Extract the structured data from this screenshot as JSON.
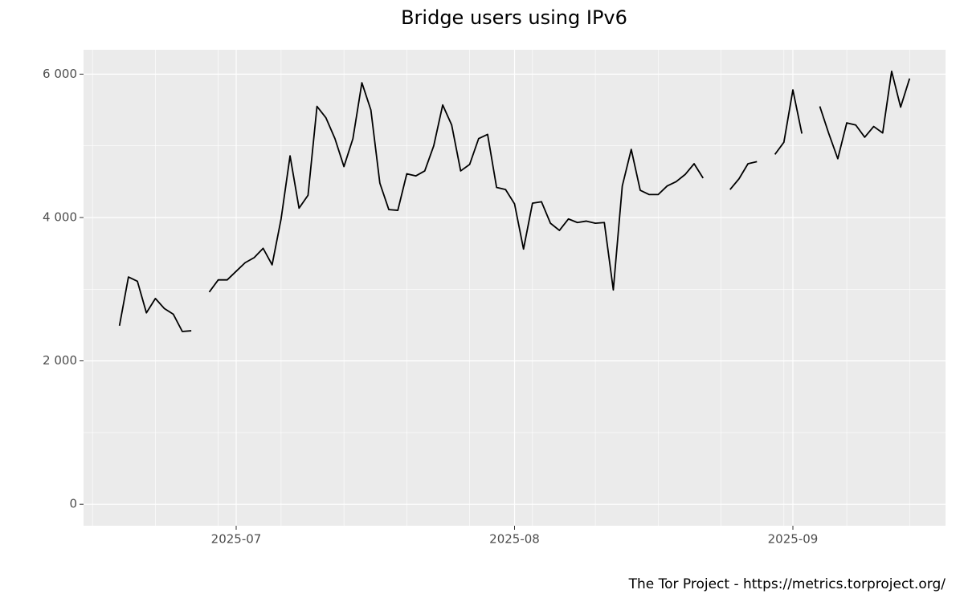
{
  "chart_data": {
    "type": "line",
    "title": "Bridge users using IPv6",
    "caption": "The Tor Project - https://metrics.torproject.org/",
    "x": [
      "2025-06-18",
      "2025-06-19",
      "2025-06-20",
      "2025-06-21",
      "2025-06-22",
      "2025-06-23",
      "2025-06-24",
      "2025-06-25",
      "2025-06-26",
      "2025-06-27",
      "2025-06-28",
      "2025-06-29",
      "2025-06-30",
      "2025-07-01",
      "2025-07-02",
      "2025-07-03",
      "2025-07-04",
      "2025-07-05",
      "2025-07-06",
      "2025-07-07",
      "2025-07-08",
      "2025-07-09",
      "2025-07-10",
      "2025-07-11",
      "2025-07-12",
      "2025-07-13",
      "2025-07-14",
      "2025-07-15",
      "2025-07-16",
      "2025-07-17",
      "2025-07-18",
      "2025-07-19",
      "2025-07-20",
      "2025-07-21",
      "2025-07-22",
      "2025-07-23",
      "2025-07-24",
      "2025-07-25",
      "2025-07-26",
      "2025-07-27",
      "2025-07-28",
      "2025-07-29",
      "2025-07-30",
      "2025-07-31",
      "2025-08-01",
      "2025-08-02",
      "2025-08-03",
      "2025-08-04",
      "2025-08-05",
      "2025-08-06",
      "2025-08-07",
      "2025-08-08",
      "2025-08-09",
      "2025-08-10",
      "2025-08-11",
      "2025-08-12",
      "2025-08-13",
      "2025-08-14",
      "2025-08-15",
      "2025-08-16",
      "2025-08-17",
      "2025-08-18",
      "2025-08-19",
      "2025-08-20",
      "2025-08-21",
      "2025-08-22",
      "2025-08-23",
      "2025-08-24",
      "2025-08-25",
      "2025-08-26",
      "2025-08-27",
      "2025-08-28",
      "2025-08-29",
      "2025-08-30",
      "2025-08-31",
      "2025-09-01",
      "2025-09-02",
      "2025-09-03",
      "2025-09-04",
      "2025-09-05",
      "2025-09-06",
      "2025-09-07",
      "2025-09-08",
      "2025-09-09",
      "2025-09-10",
      "2025-09-11",
      "2025-09-12",
      "2025-09-13",
      "2025-09-14"
    ],
    "series": [
      {
        "color": "#000000",
        "values": [
          2490,
          3170,
          3110,
          2670,
          2870,
          2730,
          2650,
          2410,
          2420,
          null,
          2960,
          3130,
          3130,
          3250,
          3370,
          3440,
          3570,
          3340,
          3980,
          4860,
          4130,
          4310,
          5550,
          5390,
          5100,
          4710,
          5100,
          5880,
          5500,
          4480,
          4110,
          4100,
          4610,
          4580,
          4650,
          5000,
          5570,
          5290,
          4650,
          4740,
          5100,
          5160,
          4420,
          4390,
          4190,
          3560,
          4200,
          4220,
          3920,
          3820,
          3980,
          3930,
          3950,
          3920,
          3930,
          2990,
          4440,
          4950,
          4380,
          4320,
          4320,
          4440,
          4500,
          4600,
          4750,
          4550,
          null,
          null,
          4390,
          4540,
          4750,
          4780,
          null,
          4880,
          5050,
          5780,
          5170,
          null,
          5550,
          5170,
          4820,
          5320,
          5290,
          5120,
          5270,
          5180,
          6040,
          5540,
          5940
        ]
      }
    ],
    "xlim": [
      "2025-06-14",
      "2025-09-18"
    ],
    "xticks": [
      "2025-07",
      "2025-08",
      "2025-09"
    ],
    "xminor_ticks": [
      "2025-06-15",
      "2025-06-22",
      "2025-06-29",
      "2025-07-06",
      "2025-07-13",
      "2025-07-20",
      "2025-07-27",
      "2025-08-03",
      "2025-08-10",
      "2025-08-17",
      "2025-08-24",
      "2025-08-31",
      "2025-09-07",
      "2025-09-14"
    ],
    "ylim": [
      -300,
      6340
    ],
    "yticks": [
      0,
      {
        "value": 2000,
        "label": "2 000"
      },
      {
        "value": 4000,
        "label": "4 000"
      },
      {
        "value": 6000,
        "label": "6 000"
      }
    ],
    "yminor_ticks": [
      1000,
      3000,
      5000
    ],
    "grid": true
  }
}
